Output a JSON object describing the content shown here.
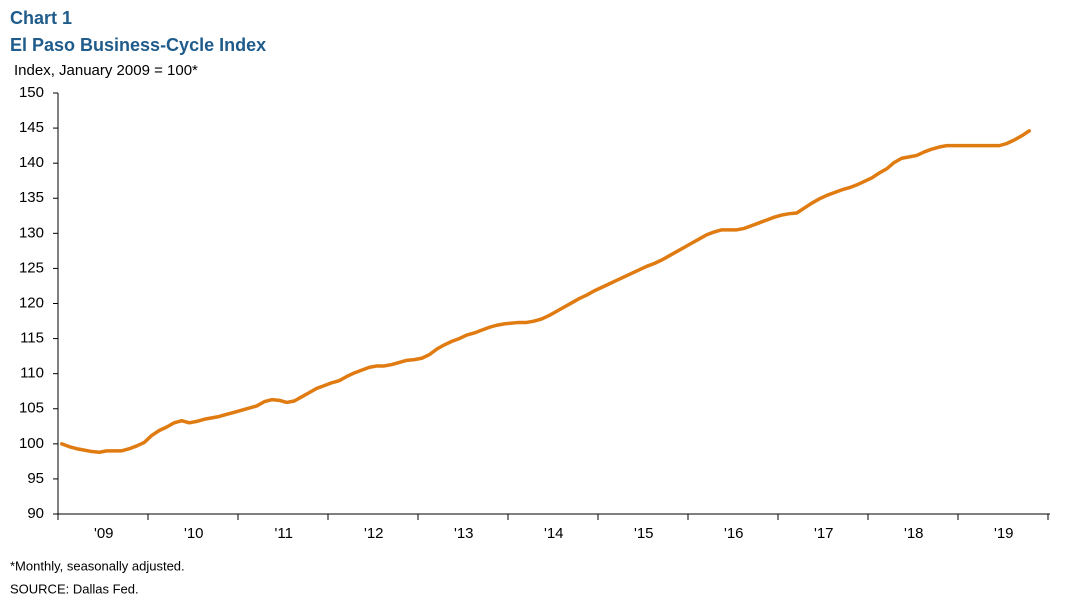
{
  "chart_data": {
    "type": "line",
    "title": "Chart 1",
    "subtitle": "El Paso Business-Cycle  Index",
    "y_label": "Index, January 2009 = 100*",
    "footnote": "*Monthly, seasonally adjusted.",
    "source": "SOURCE:  Dallas Fed.",
    "categories": [
      null,
      null,
      null,
      null,
      null,
      null,
      "'09",
      null,
      null,
      null,
      null,
      null,
      null,
      null,
      null,
      null,
      null,
      null,
      "'10",
      null,
      null,
      null,
      null,
      null,
      null,
      null,
      null,
      null,
      null,
      null,
      "'11",
      null,
      null,
      null,
      null,
      null,
      null,
      null,
      null,
      null,
      null,
      null,
      "'12",
      null,
      null,
      null,
      null,
      null,
      null,
      null,
      null,
      null,
      null,
      null,
      "'13",
      null,
      null,
      null,
      null,
      null,
      null,
      null,
      null,
      null,
      null,
      null,
      "'14",
      null,
      null,
      null,
      null,
      null,
      null,
      null,
      null,
      null,
      null,
      null,
      "'15",
      null,
      null,
      null,
      null,
      null,
      null,
      null,
      null,
      null,
      null,
      null,
      "'16",
      null,
      null,
      null,
      null,
      null,
      null,
      null,
      null,
      null,
      null,
      null,
      "'17",
      null,
      null,
      null,
      null,
      null,
      null,
      null,
      null,
      null,
      null,
      null,
      "'18",
      null,
      null,
      null,
      null,
      null,
      null,
      null,
      null,
      null,
      null,
      null,
      "'19",
      null,
      null,
      null
    ],
    "series": [
      {
        "name": "El Paso Business-Cycle Index",
        "color": "#e07b12",
        "values": [
          100,
          99.6,
          99.3,
          99.1,
          98.9,
          98.8,
          99.0,
          99.0,
          99.0,
          99.3,
          99.7,
          100.2,
          101.2,
          101.9,
          102.4,
          103.0,
          103.3,
          103.0,
          103.2,
          103.5,
          103.7,
          103.9,
          104.2,
          104.5,
          104.8,
          105.1,
          105.4,
          106.0,
          106.3,
          106.2,
          105.9,
          106.1,
          106.7,
          107.3,
          107.9,
          108.3,
          108.7,
          109.0,
          109.6,
          110.1,
          110.5,
          110.9,
          111.1,
          111.1,
          111.3,
          111.6,
          111.9,
          112.0,
          112.2,
          112.7,
          113.5,
          114.1,
          114.6,
          115.0,
          115.5,
          115.8,
          116.2,
          116.6,
          116.9,
          117.1,
          117.2,
          117.3,
          117.3,
          117.5,
          117.8,
          118.3,
          118.9,
          119.5,
          120.1,
          120.7,
          121.2,
          121.8,
          122.3,
          122.8,
          123.3,
          123.8,
          124.3,
          124.8,
          125.3,
          125.7,
          126.2,
          126.8,
          127.4,
          128.0,
          128.6,
          129.2,
          129.8,
          130.2,
          130.5,
          130.5,
          130.5,
          130.7,
          131.1,
          131.5,
          131.9,
          132.3,
          132.6,
          132.8,
          132.9,
          133.6,
          134.3,
          134.9,
          135.4,
          135.8,
          136.2,
          136.5,
          136.9,
          137.4,
          137.9,
          138.6,
          139.2,
          140.1,
          140.7,
          140.9,
          141.1,
          141.6,
          142.0,
          142.3,
          142.5,
          142.5,
          142.5,
          142.5,
          142.5,
          142.5,
          142.5,
          142.5,
          142.8,
          143.3,
          143.9,
          144.6
        ]
      }
    ],
    "ylim": [
      90,
      150
    ],
    "yticks": [
      90,
      95,
      100,
      105,
      110,
      115,
      120,
      125,
      130,
      135,
      140,
      145,
      150
    ],
    "grid": false
  }
}
